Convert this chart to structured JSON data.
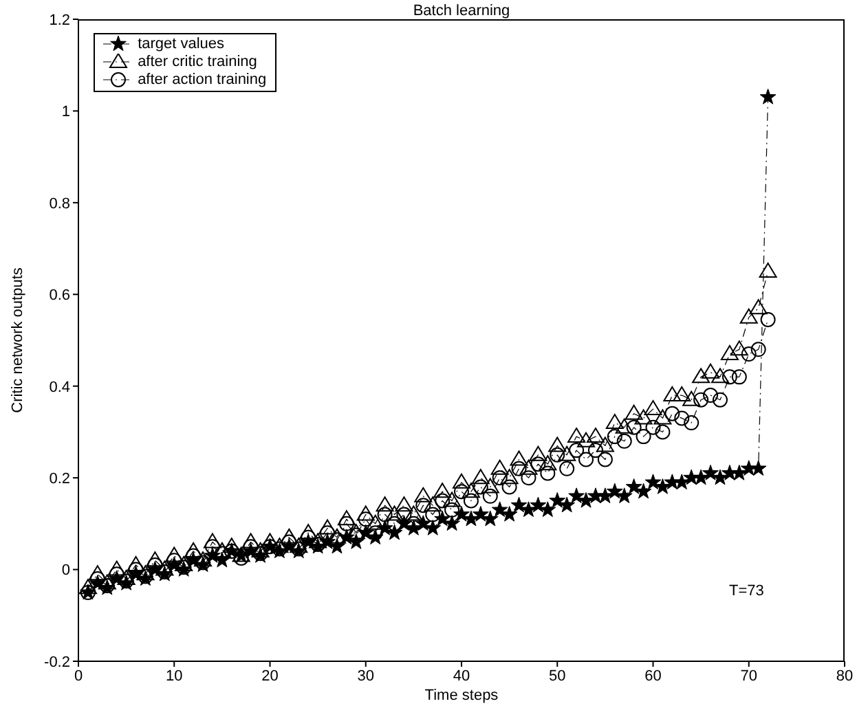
{
  "chart_data": {
    "type": "line",
    "title": "Batch learning",
    "xlabel": "Time steps",
    "ylabel": "Critic network outputs",
    "x": [
      1,
      2,
      3,
      4,
      5,
      6,
      7,
      8,
      9,
      10,
      11,
      12,
      13,
      14,
      15,
      16,
      17,
      18,
      19,
      20,
      21,
      22,
      23,
      24,
      25,
      26,
      27,
      28,
      29,
      30,
      31,
      32,
      33,
      34,
      35,
      36,
      37,
      38,
      39,
      40,
      41,
      42,
      43,
      44,
      45,
      46,
      47,
      48,
      49,
      50,
      51,
      52,
      53,
      54,
      55,
      56,
      57,
      58,
      59,
      60,
      61,
      62,
      63,
      64,
      65,
      66,
      67,
      68,
      69,
      70,
      71,
      72
    ],
    "series": [
      {
        "name": "target values",
        "color": "#000000",
        "marker": "star",
        "values": [
          -0.05,
          -0.03,
          -0.04,
          -0.02,
          -0.03,
          -0.01,
          -0.02,
          0.0,
          -0.01,
          0.01,
          0.0,
          0.02,
          0.01,
          0.03,
          0.02,
          0.04,
          0.03,
          0.04,
          0.03,
          0.05,
          0.04,
          0.05,
          0.04,
          0.06,
          0.05,
          0.06,
          0.05,
          0.07,
          0.06,
          0.08,
          0.07,
          0.09,
          0.08,
          0.1,
          0.09,
          0.1,
          0.09,
          0.11,
          0.1,
          0.12,
          0.11,
          0.12,
          0.11,
          0.13,
          0.12,
          0.14,
          0.13,
          0.14,
          0.13,
          0.15,
          0.14,
          0.16,
          0.15,
          0.16,
          0.16,
          0.17,
          0.16,
          0.18,
          0.17,
          0.19,
          0.18,
          0.19,
          0.19,
          0.2,
          0.2,
          0.21,
          0.2,
          0.21,
          0.21,
          0.22,
          0.22,
          1.03
        ]
      },
      {
        "name": "after critic training",
        "color": "#000000",
        "marker": "triangle",
        "values": [
          -0.04,
          -0.01,
          -0.03,
          0.0,
          -0.02,
          0.01,
          -0.01,
          0.02,
          0.0,
          0.03,
          0.01,
          0.04,
          0.02,
          0.06,
          0.04,
          0.05,
          0.03,
          0.06,
          0.04,
          0.06,
          0.05,
          0.07,
          0.05,
          0.08,
          0.06,
          0.09,
          0.07,
          0.11,
          0.08,
          0.12,
          0.1,
          0.14,
          0.12,
          0.14,
          0.12,
          0.16,
          0.14,
          0.17,
          0.15,
          0.19,
          0.17,
          0.2,
          0.18,
          0.22,
          0.2,
          0.24,
          0.22,
          0.25,
          0.23,
          0.27,
          0.25,
          0.29,
          0.28,
          0.29,
          0.27,
          0.32,
          0.31,
          0.34,
          0.33,
          0.35,
          0.33,
          0.38,
          0.38,
          0.37,
          0.42,
          0.43,
          0.42,
          0.47,
          0.48,
          0.55,
          0.57,
          0.65
        ]
      },
      {
        "name": "after action training",
        "color": "#000000",
        "marker": "circle",
        "values": [
          -0.05,
          -0.02,
          -0.035,
          -0.01,
          -0.025,
          0.0,
          -0.015,
          0.01,
          -0.005,
          0.02,
          0.005,
          0.03,
          0.015,
          0.05,
          0.035,
          0.04,
          0.025,
          0.05,
          0.035,
          0.05,
          0.045,
          0.06,
          0.045,
          0.07,
          0.055,
          0.08,
          0.065,
          0.1,
          0.075,
          0.11,
          0.08,
          0.12,
          0.1,
          0.12,
          0.1,
          0.14,
          0.12,
          0.15,
          0.13,
          0.17,
          0.15,
          0.18,
          0.16,
          0.2,
          0.18,
          0.22,
          0.2,
          0.23,
          0.21,
          0.25,
          0.22,
          0.26,
          0.24,
          0.26,
          0.24,
          0.29,
          0.28,
          0.31,
          0.29,
          0.31,
          0.3,
          0.34,
          0.33,
          0.32,
          0.37,
          0.38,
          0.37,
          0.42,
          0.42,
          0.47,
          0.48,
          0.545
        ]
      }
    ],
    "xlim": [
      0,
      80
    ],
    "xticks": [
      0,
      10,
      20,
      30,
      40,
      50,
      60,
      70,
      80
    ],
    "ylim": [
      -0.2,
      1.2
    ],
    "yticks": [
      -0.2,
      0,
      0.2,
      0.4,
      0.6,
      0.8,
      1,
      1.2
    ],
    "line_style": "dashed",
    "grid": false,
    "legend": "top left",
    "annotations": [
      "T=73"
    ]
  }
}
